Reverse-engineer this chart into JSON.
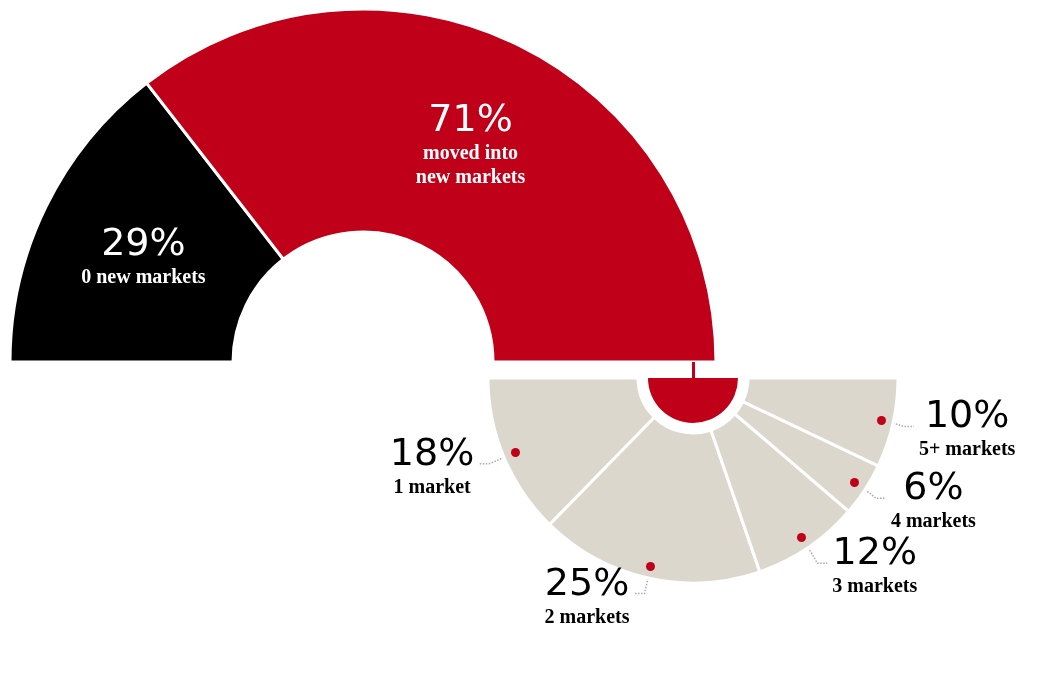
{
  "chart_data": [
    {
      "type": "donut",
      "categories": [
        "0 new markets",
        "moved into new markets"
      ],
      "values": [
        29,
        71
      ],
      "value_labels": [
        "29%",
        "71%"
      ],
      "colors": [
        "#000000",
        "#c00018"
      ]
    },
    {
      "type": "donut",
      "categories": [
        "1 market",
        "2 markets",
        "3 markets",
        "4 markets",
        "5+ markets"
      ],
      "values": [
        18,
        25,
        12,
        6,
        10
      ],
      "value_labels": [
        "18%",
        "25%",
        "12%",
        "6%",
        "10%"
      ],
      "colors": [
        "#dcd7cc",
        "#dcd7cc",
        "#dcd7cc",
        "#dcd7cc",
        "#dcd7cc"
      ]
    }
  ]
}
